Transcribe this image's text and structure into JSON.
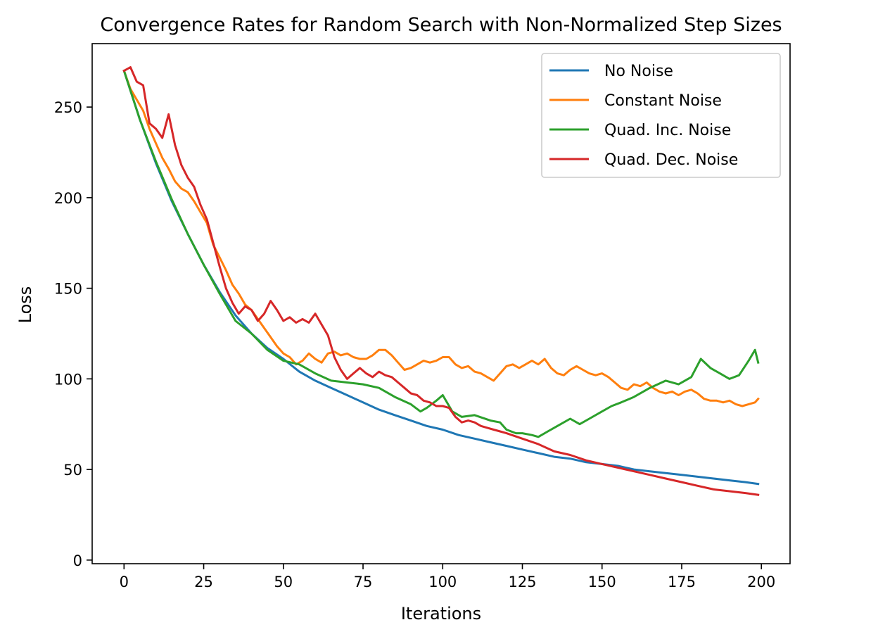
{
  "chart_data": {
    "type": "line",
    "title": "Convergence Rates for Random Search with Non-Normalized Step Sizes",
    "xlabel": "Iterations",
    "ylabel": "Loss",
    "xlim": [
      -10,
      209
    ],
    "ylim": [
      -2,
      285
    ],
    "xticks": [
      0,
      25,
      50,
      75,
      100,
      125,
      150,
      175,
      200
    ],
    "yticks": [
      0,
      50,
      100,
      150,
      200,
      250
    ],
    "grid": false,
    "legend_position": "top-right",
    "series": [
      {
        "name": "No Noise",
        "color": "#1f77b4",
        "x": [
          0,
          5,
          10,
          15,
          20,
          25,
          30,
          35,
          40,
          45,
          50,
          55,
          60,
          65,
          70,
          75,
          80,
          85,
          90,
          95,
          100,
          105,
          110,
          115,
          120,
          125,
          130,
          135,
          140,
          145,
          150,
          155,
          160,
          165,
          170,
          175,
          180,
          185,
          190,
          195,
          199
        ],
        "y": [
          270,
          243,
          219,
          198,
          180,
          163,
          148,
          135,
          125,
          117,
          111,
          104,
          99,
          95,
          91,
          87,
          83,
          80,
          77,
          74,
          72,
          69,
          67,
          65,
          63,
          61,
          59,
          57,
          56,
          54,
          53,
          52,
          50,
          49,
          48,
          47,
          46,
          45,
          44,
          43,
          42
        ]
      },
      {
        "name": "Constant Noise",
        "color": "#ff7f0e",
        "x": [
          0,
          2,
          4,
          6,
          8,
          10,
          12,
          14,
          16,
          18,
          20,
          22,
          24,
          26,
          28,
          30,
          32,
          34,
          36,
          38,
          40,
          42,
          44,
          46,
          48,
          50,
          52,
          54,
          56,
          58,
          60,
          62,
          64,
          66,
          68,
          70,
          72,
          74,
          76,
          78,
          80,
          82,
          84,
          86,
          88,
          90,
          92,
          94,
          96,
          98,
          100,
          102,
          104,
          106,
          108,
          110,
          112,
          114,
          116,
          118,
          120,
          122,
          124,
          126,
          128,
          130,
          132,
          134,
          136,
          138,
          140,
          142,
          144,
          146,
          148,
          150,
          152,
          154,
          156,
          158,
          160,
          162,
          164,
          166,
          168,
          170,
          172,
          174,
          176,
          178,
          180,
          182,
          184,
          186,
          188,
          190,
          192,
          194,
          196,
          198,
          199
        ],
        "y": [
          270,
          260,
          254,
          248,
          238,
          230,
          222,
          216,
          209,
          205,
          203,
          198,
          192,
          186,
          174,
          167,
          160,
          152,
          147,
          141,
          138,
          133,
          128,
          123,
          118,
          114,
          112,
          108,
          110,
          114,
          111,
          109,
          114,
          115,
          113,
          114,
          112,
          111,
          111,
          113,
          116,
          116,
          113,
          109,
          105,
          106,
          108,
          110,
          109,
          110,
          112,
          112,
          108,
          106,
          107,
          104,
          103,
          101,
          99,
          103,
          107,
          108,
          106,
          108,
          110,
          108,
          111,
          106,
          103,
          102,
          105,
          107,
          105,
          103,
          102,
          103,
          101,
          98,
          95,
          94,
          97,
          96,
          98,
          95,
          93,
          92,
          93,
          91,
          93,
          94,
          92,
          89,
          88,
          88,
          87,
          88,
          86,
          85,
          86,
          87,
          89
        ]
      },
      {
        "name": "Quad. Inc. Noise",
        "color": "#2ca02c",
        "x": [
          0,
          5,
          10,
          15,
          20,
          25,
          30,
          35,
          40,
          45,
          50,
          55,
          60,
          65,
          70,
          75,
          80,
          85,
          90,
          93,
          95,
          98,
          100,
          103,
          106,
          110,
          115,
          118,
          120,
          123,
          125,
          128,
          130,
          133,
          136,
          140,
          143,
          146,
          150,
          153,
          156,
          160,
          165,
          170,
          174,
          178,
          181,
          184,
          187,
          190,
          193,
          196,
          198,
          199
        ],
        "y": [
          270,
          243,
          220,
          199,
          180,
          163,
          147,
          132,
          125,
          116,
          110,
          108,
          103,
          99,
          98,
          97,
          95,
          90,
          86,
          82,
          84,
          88,
          91,
          82,
          79,
          80,
          77,
          76,
          72,
          70,
          70,
          69,
          68,
          71,
          74,
          78,
          75,
          78,
          82,
          85,
          87,
          90,
          95,
          99,
          97,
          101,
          111,
          106,
          103,
          100,
          102,
          110,
          116,
          109
        ]
      },
      {
        "name": "Quad. Dec. Noise",
        "color": "#d62728",
        "x": [
          0,
          2,
          4,
          6,
          8,
          10,
          12,
          14,
          16,
          18,
          20,
          22,
          24,
          26,
          28,
          30,
          32,
          34,
          36,
          38,
          40,
          42,
          44,
          46,
          48,
          50,
          52,
          54,
          56,
          58,
          60,
          62,
          64,
          66,
          68,
          70,
          72,
          74,
          76,
          78,
          80,
          82,
          84,
          86,
          88,
          90,
          92,
          94,
          96,
          98,
          100,
          102,
          104,
          106,
          108,
          110,
          112,
          114,
          116,
          118,
          120,
          125,
          130,
          135,
          140,
          145,
          150,
          155,
          160,
          165,
          170,
          175,
          180,
          185,
          190,
          195,
          199
        ],
        "y": [
          270,
          272,
          264,
          262,
          241,
          238,
          233,
          246,
          229,
          218,
          211,
          206,
          196,
          188,
          175,
          162,
          150,
          142,
          136,
          140,
          138,
          132,
          136,
          143,
          138,
          132,
          134,
          131,
          133,
          131,
          136,
          130,
          124,
          112,
          105,
          100,
          103,
          106,
          103,
          101,
          104,
          102,
          101,
          98,
          95,
          92,
          91,
          88,
          87,
          85,
          85,
          84,
          79,
          76,
          77,
          76,
          74,
          73,
          72,
          71,
          70,
          67,
          64,
          60,
          58,
          55,
          53,
          51,
          49,
          47,
          45,
          43,
          41,
          39,
          38,
          37,
          36
        ]
      }
    ]
  }
}
